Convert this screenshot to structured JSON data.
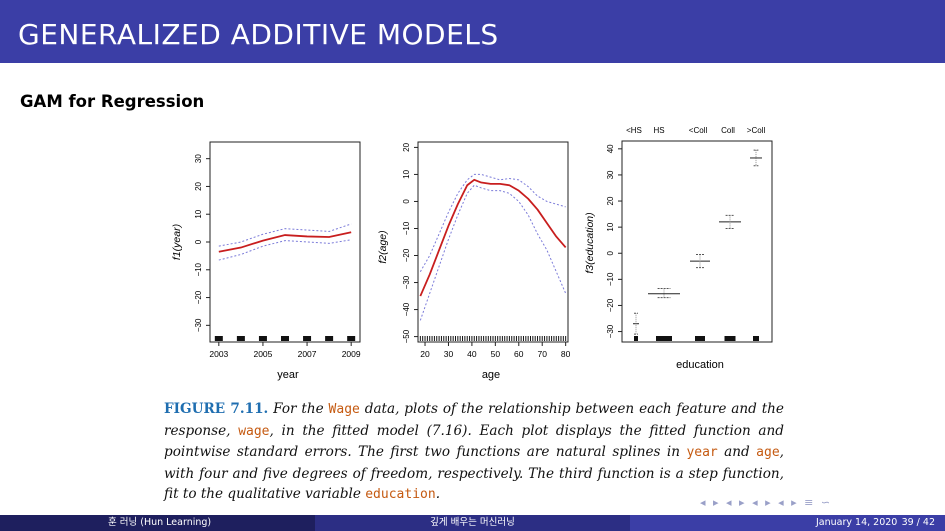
{
  "slide": {
    "title": "GENERALIZED ADDITIVE MODELS",
    "subtitle": "GAM for Regression"
  },
  "panel_year": {
    "ylabel": "f1(year)",
    "xlabel": "year",
    "xticks": [
      "2003",
      "2005",
      "2007",
      "2009"
    ],
    "yticks": [
      "−30",
      "−20",
      "−10",
      "0",
      "10",
      "20",
      "30"
    ]
  },
  "panel_age": {
    "ylabel": "f2(age)",
    "xlabel": "age",
    "xticks": [
      "20",
      "30",
      "40",
      "50",
      "60",
      "70",
      "80"
    ],
    "yticks": [
      "−50",
      "−40",
      "−30",
      "−20",
      "−10",
      "0",
      "10",
      "20"
    ]
  },
  "panel_education": {
    "ylabel": "f3(education)",
    "xlabel": "education",
    "top_labels": [
      "<HS",
      "HS",
      "<Coll",
      "Coll",
      ">Coll"
    ],
    "yticks": [
      "−30",
      "−20",
      "−10",
      "0",
      "10",
      "20",
      "30",
      "40"
    ]
  },
  "caption": {
    "label": "FIGURE 7.11.",
    "t1": " For the ",
    "c1": "Wage",
    "t2": " data, plots of the relationship between each feature and the response, ",
    "c2": "wage",
    "t3": ", in the fitted model (7.16). Each plot displays the fitted function and pointwise standard errors. The first two functions are natural splines in ",
    "c3": "year",
    "t4": " and ",
    "c4": "age",
    "t5": ", with four and five degrees of freedom, respectively. The third function is a step function, fit to the qualitative variable ",
    "c5": "education",
    "t6": "."
  },
  "footer": {
    "author": "훈 러닝 (Hun Learning)",
    "course": "깊게 배우는 머신러닝",
    "date": "January 14, 2020",
    "page": "39 / 42"
  },
  "colors": {
    "title_bar": "#3b3ea6",
    "fit_line": "#c81e1e",
    "se_band": "#7b7bd9",
    "caption_label": "#1f6eb0",
    "code_text": "#c55a11"
  },
  "chart_data": [
    {
      "type": "line",
      "xlabel": "year",
      "ylabel": "f1(year)",
      "xlim": [
        2002.6,
        2009.4
      ],
      "ylim": [
        -36,
        36
      ],
      "series": [
        {
          "name": "",
          "x": [
            2003,
            2004,
            2005,
            2006,
            2007,
            2008,
            2009
          ],
          "y": [
            -3.5,
            -2,
            0.5,
            2.5,
            2,
            1.8,
            3.5
          ]
        },
        {
          "name": "",
          "x": [
            2003,
            2004,
            2005,
            2006,
            2007,
            2008,
            2009
          ],
          "y": [
            -1.5,
            0,
            2.8,
            4.8,
            4.3,
            3.8,
            6.5
          ]
        },
        {
          "name": "",
          "x": [
            2003,
            2004,
            2005,
            2006,
            2007,
            2008,
            2009
          ],
          "y": [
            -6.5,
            -4.5,
            -1.5,
            0.5,
            0,
            -0.5,
            0.8
          ]
        }
      ],
      "rug_x": [
        2003,
        2004,
        2005,
        2006,
        2007,
        2008,
        2009
      ]
    },
    {
      "type": "line",
      "xlabel": "age",
      "ylabel": "f2(age)",
      "xlim": [
        17,
        81
      ],
      "ylim": [
        -52,
        22
      ],
      "series": [
        {
          "name": "",
          "x": [
            18,
            22,
            26,
            30,
            34,
            38,
            41,
            44,
            48,
            52,
            56,
            60,
            64,
            68,
            72,
            76,
            80
          ],
          "y": [
            -35,
            -27,
            -18,
            -9,
            -1,
            6,
            8,
            7,
            6.5,
            6.5,
            6,
            4,
            1,
            -3,
            -8,
            -13,
            -17
          ]
        },
        {
          "name": "",
          "x": [
            18,
            22,
            26,
            30,
            34,
            38,
            41,
            44,
            48,
            52,
            56,
            60,
            64,
            68,
            72,
            76,
            80
          ],
          "y": [
            -26,
            -20,
            -12,
            -4,
            3,
            8,
            10,
            10,
            9,
            8,
            8.5,
            8,
            5.5,
            2,
            0,
            -1,
            -2
          ]
        },
        {
          "name": "",
          "x": [
            18,
            22,
            26,
            30,
            34,
            38,
            41,
            44,
            48,
            52,
            56,
            60,
            64,
            68,
            72,
            76,
            80
          ],
          "y": [
            -44,
            -34,
            -24,
            -14,
            -5,
            3,
            6,
            5,
            4,
            4,
            3,
            0,
            -5,
            -12,
            -18,
            -26,
            -34
          ]
        }
      ]
    },
    {
      "type": "scatter",
      "xlabel": "education",
      "ylabel": "f3(education)",
      "categories": [
        "<HS",
        "HS",
        "<Coll",
        "Coll",
        ">Coll"
      ],
      "ylim": [
        -34,
        43
      ],
      "values": [
        -27,
        -15.5,
        -3,
        12,
        36.5
      ],
      "se_low": [
        -31,
        -17,
        -5.5,
        9.5,
        33.5
      ],
      "se_high": [
        -23,
        -13.5,
        -0.5,
        14.5,
        39.5
      ]
    }
  ]
}
